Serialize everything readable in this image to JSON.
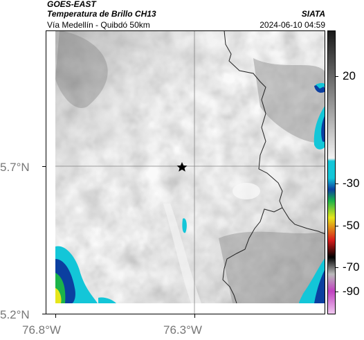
{
  "header": {
    "satellite": "GOES-EAST",
    "product": "Temperatura de Brillo CH13",
    "route": "Vía Medellín - Quibdó 50km",
    "org": "SIATA",
    "datetime": "2024-06-10 04:59"
  },
  "axes": {
    "y_labels": [
      "5.7°N",
      "5.2°N"
    ],
    "x_labels": [
      "76.8°W",
      "76.3°W"
    ]
  },
  "colorbar": {
    "labels": [
      "20",
      "-30",
      "-50",
      "-70",
      "-90"
    ],
    "colors": {
      "gray_top": "#1a1a1a",
      "gray_bottom": "#f2f2f2",
      "cyan": "#13c6d8",
      "blue": "#0b3fa0",
      "green": "#1bb34a",
      "yellow": "#e6e61a",
      "red": "#d81b1b",
      "black": "#000000",
      "magenta": "#c040c0"
    }
  },
  "map": {
    "marker": "star-icon",
    "background_color": "#d8d8d8",
    "border_color": "#333333"
  }
}
